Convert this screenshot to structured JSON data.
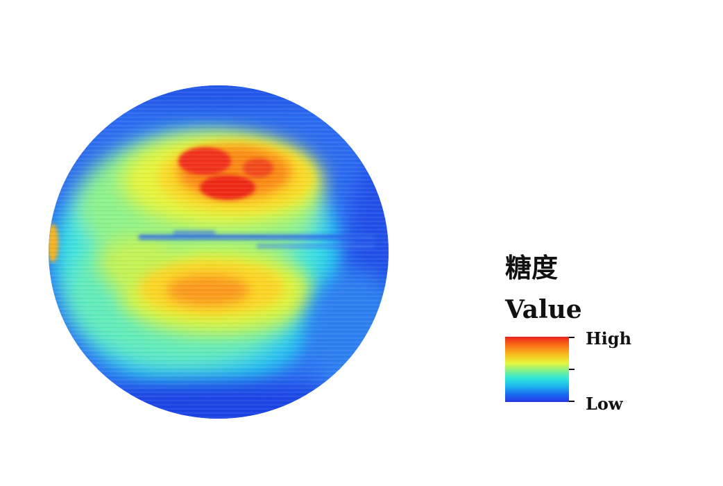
{
  "legend": {
    "title": "糖度",
    "subtitle": "Value",
    "high_label": "High",
    "low_label": "Low",
    "colormap": [
      "#2436e3",
      "#1a6cf1",
      "#1fb6ee",
      "#2ee6dc",
      "#82f08a",
      "#e8f53a",
      "#f7c01f",
      "#fb6a17",
      "#e8231c"
    ]
  },
  "heatmap": {
    "shape": "circle",
    "description_colors": {
      "low": "#2436e3",
      "mid": "#2ee6dc",
      "high": "#e8231c"
    }
  }
}
